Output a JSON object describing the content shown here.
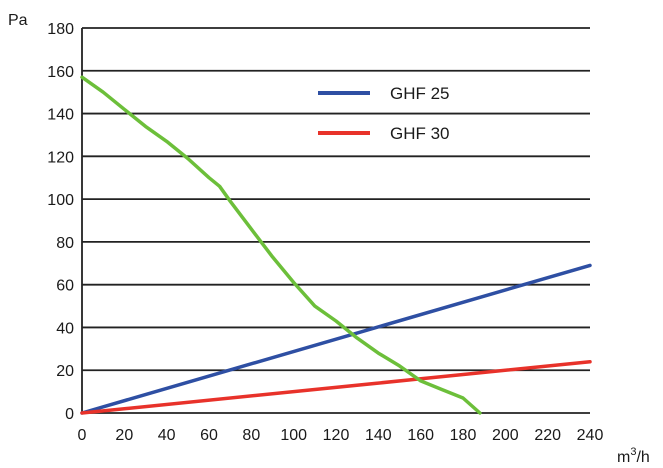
{
  "chart_data": {
    "type": "line",
    "ylabel": "Pa",
    "xlabel_base": "m",
    "xlabel_sup": "3",
    "xlabel_tail": "/h",
    "xlim": [
      0,
      240
    ],
    "ylim": [
      0,
      180
    ],
    "x_ticks": [
      "0",
      "20",
      "40",
      "60",
      "80",
      "100",
      "120",
      "140",
      "160",
      "180",
      "200",
      "220",
      "240"
    ],
    "y_ticks": [
      "0",
      "20",
      "40",
      "60",
      "80",
      "100",
      "120",
      "140",
      "160",
      "180"
    ],
    "grid": "horizontal",
    "legend_position": "top-center",
    "series": [
      {
        "name": "GHF 25",
        "color": "#2e4fa3",
        "x": [
          0,
          240
        ],
        "y": [
          0,
          69
        ]
      },
      {
        "name": "GHF 30",
        "color": "#e8322a",
        "x": [
          0,
          240
        ],
        "y": [
          0,
          24
        ]
      },
      {
        "name": "",
        "color": "#6cbf3a",
        "x": [
          0,
          10,
          20,
          30,
          40,
          50,
          60,
          65,
          70,
          80,
          90,
          100,
          110,
          120,
          130,
          140,
          150,
          160,
          170,
          180,
          188
        ],
        "y": [
          157,
          150,
          142,
          134,
          127,
          119,
          110,
          106,
          99,
          86,
          73,
          61,
          50,
          43,
          35,
          28,
          22,
          15,
          11,
          7,
          0
        ]
      }
    ]
  }
}
